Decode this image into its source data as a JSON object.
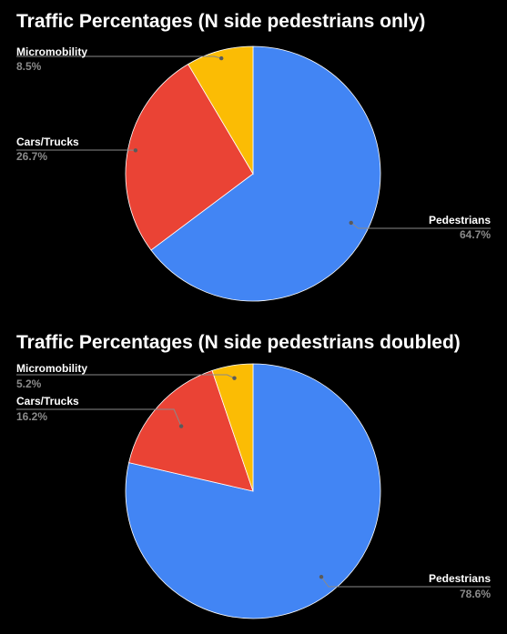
{
  "chart_data": [
    {
      "type": "pie",
      "title": "Traffic Percentages (N side pedestrians only)",
      "slices": [
        {
          "label": "Pedestrians",
          "value": 64.7,
          "display": "64.7%",
          "color": "#4285f4"
        },
        {
          "label": "Cars/Trucks",
          "value": 26.7,
          "display": "26.7%",
          "color": "#ea4335"
        },
        {
          "label": "Micromobility",
          "value": 8.5,
          "display": "8.5%",
          "color": "#fbbc04"
        }
      ],
      "legend": "none",
      "label_placement": "outside with leader lines"
    },
    {
      "type": "pie",
      "title": "Traffic Percentages (N side pedestrians doubled)",
      "slices": [
        {
          "label": "Pedestrians",
          "value": 78.6,
          "display": "78.6%",
          "color": "#4285f4"
        },
        {
          "label": "Cars/Trucks",
          "value": 16.2,
          "display": "16.2%",
          "color": "#ea4335"
        },
        {
          "label": "Micromobility",
          "value": 5.2,
          "display": "5.2%",
          "color": "#fbbc04"
        }
      ],
      "legend": "none",
      "label_placement": "outside with leader lines"
    }
  ]
}
